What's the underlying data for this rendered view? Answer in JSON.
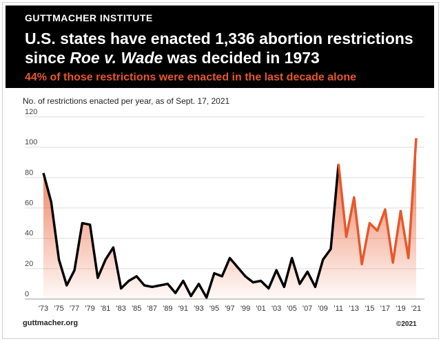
{
  "header": {
    "org": "GUTTMACHER INSTITUTE",
    "title_part1": "U.S. states have enacted 1,336 abortion restrictions since ",
    "title_italic": "Roe v. Wade",
    "title_part2": " was decided in 1973",
    "subtitle": "44% of those restrictions were enacted in the last decade alone"
  },
  "note": "No. of restrictions enacted per year, as of Sept. 17, 2021",
  "footer": {
    "left": "guttmacher.org",
    "right": "©2021"
  },
  "colors": {
    "header_bg": "#000000",
    "accent": "#e8572a",
    "line_early": "#000000",
    "line_recent": "#e8572a"
  },
  "chart_data": {
    "type": "line",
    "x": [
      1973,
      1974,
      1975,
      1976,
      1977,
      1978,
      1979,
      1980,
      1981,
      1982,
      1983,
      1984,
      1985,
      1986,
      1987,
      1988,
      1989,
      1990,
      1991,
      1992,
      1993,
      1994,
      1995,
      1996,
      1997,
      1998,
      1999,
      2000,
      2001,
      2002,
      2003,
      2004,
      2005,
      2006,
      2007,
      2008,
      2009,
      2010,
      2011,
      2012,
      2013,
      2014,
      2015,
      2016,
      2017,
      2018,
      2019,
      2020,
      2021
    ],
    "values": [
      83,
      64,
      26,
      9,
      19,
      50,
      49,
      14,
      26,
      34,
      7,
      12,
      15,
      9,
      8,
      9,
      10,
      4,
      12,
      2,
      10,
      1,
      17,
      15,
      27,
      21,
      15,
      11,
      12,
      7,
      19,
      8,
      27,
      10,
      18,
      8,
      26,
      33,
      89,
      41,
      67,
      23,
      50,
      45,
      59,
      24,
      58,
      27,
      106
    ],
    "highlight_from": 2011,
    "xtick_labels": [
      "'73",
      "'75",
      "'77",
      "'79",
      "'81",
      "'83",
      "'85",
      "'87",
      "'89",
      "'91",
      "'93",
      "'95",
      "'97",
      "'99",
      "'01",
      "'03",
      "'05",
      "'07",
      "'09",
      "'11",
      "'13",
      "'15",
      "'17",
      "'19",
      "'21"
    ],
    "yticks": [
      0,
      20,
      40,
      60,
      80,
      100,
      120
    ],
    "ylim": [
      0,
      120
    ],
    "grid": true,
    "area_fill": true
  }
}
